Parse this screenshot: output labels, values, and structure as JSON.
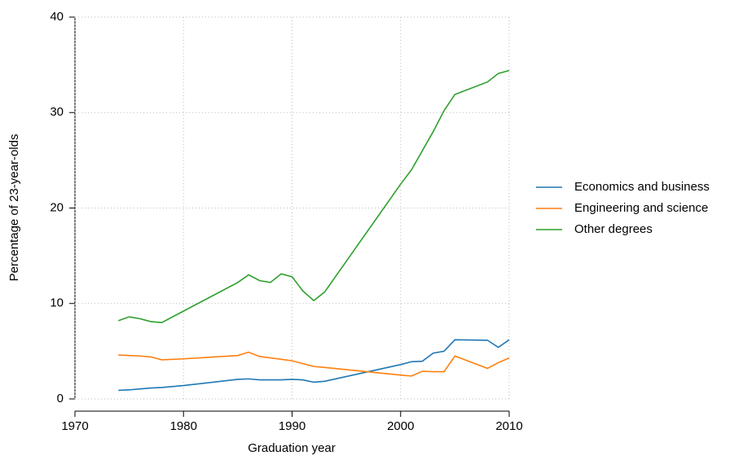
{
  "chart_data": {
    "type": "line",
    "xlabel": "Graduation year",
    "ylabel": "Percentage of 23-year-olds",
    "x": [
      1974,
      1975,
      1976,
      1977,
      1978,
      1980,
      1985,
      1986,
      1987,
      1988,
      1989,
      1990,
      1991,
      1992,
      1993,
      2000,
      2001,
      2002,
      2003,
      2004,
      2005,
      2008,
      2009,
      2010
    ],
    "series": [
      {
        "name": "Economics and business",
        "color": "#1f77b4",
        "values": [
          0.9,
          0.95,
          1.05,
          1.15,
          1.2,
          1.4,
          2.05,
          2.1,
          2.0,
          2.0,
          2.0,
          2.05,
          2.0,
          1.75,
          1.85,
          3.6,
          3.9,
          3.95,
          4.8,
          5.0,
          6.2,
          6.15,
          5.4,
          6.2
        ]
      },
      {
        "name": "Engineering and science",
        "color": "#ff7f0e",
        "values": [
          4.6,
          4.55,
          4.5,
          4.4,
          4.1,
          4.2,
          4.55,
          4.9,
          4.45,
          4.3,
          4.15,
          4.0,
          3.7,
          3.4,
          3.3,
          2.5,
          2.4,
          2.9,
          2.85,
          2.85,
          4.5,
          3.2,
          3.8,
          4.3
        ]
      },
      {
        "name": "Other degrees",
        "color": "#2ca02c",
        "values": [
          8.2,
          8.6,
          8.4,
          8.1,
          8.0,
          9.2,
          12.2,
          13.0,
          12.4,
          12.2,
          13.1,
          12.8,
          11.3,
          10.3,
          11.2,
          22.5,
          24.0,
          26.0,
          28.0,
          30.2,
          31.9,
          33.2,
          34.1,
          34.4
        ]
      }
    ],
    "xlim": [
      1970,
      2010
    ],
    "xticks": [
      1970,
      1980,
      1990,
      2000,
      2010
    ],
    "ylim": [
      0,
      40
    ],
    "yticks": [
      0,
      10,
      20,
      30,
      40
    ],
    "grid": true,
    "legend": "right"
  }
}
